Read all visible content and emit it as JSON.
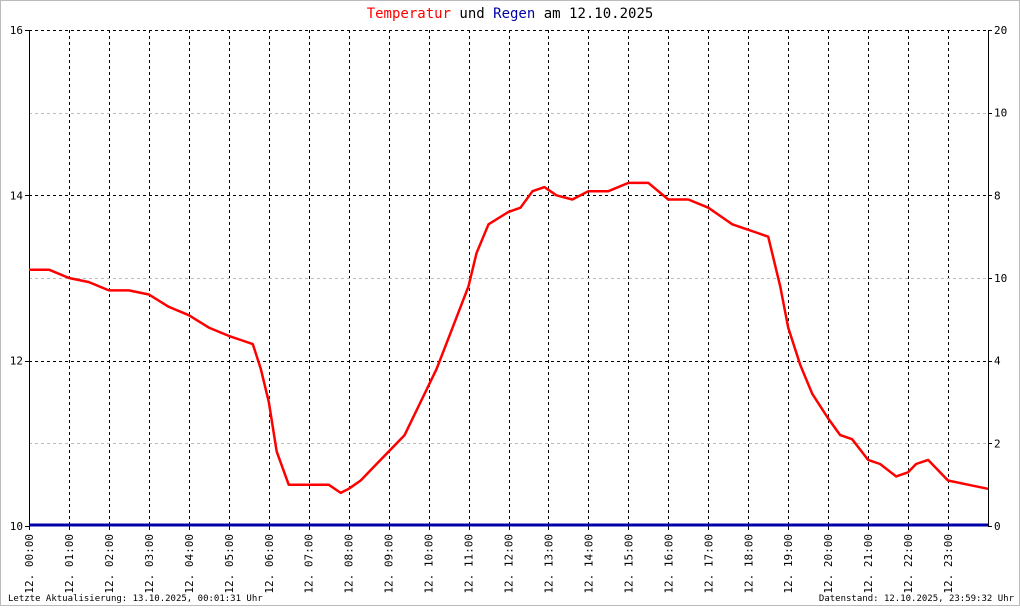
{
  "title": {
    "part1": "Temperatur",
    "part2": " und ",
    "part3": "Regen",
    "part4": " am 12.10.2025"
  },
  "colors": {
    "temperature": "#ff0000",
    "rain": "#0000aa",
    "right_axis_labels": "#00dd00",
    "grid": "#000000",
    "background": "#ffffff"
  },
  "footer": {
    "left": "Letzte Aktualisierung: 13.10.2025, 00:01:31 Uhr",
    "right": "Datenstand: 12.10.2025, 23:59:32 Uhr"
  },
  "chart_data": {
    "type": "line",
    "title": "Temperatur und Regen am 12.10.2025",
    "x_range_hours": [
      0,
      24
    ],
    "x_tick_labels": [
      "12. 00:00",
      "12. 01:00",
      "12. 02:00",
      "12. 03:00",
      "12. 04:00",
      "12. 05:00",
      "12. 06:00",
      "12. 07:00",
      "12. 08:00",
      "12. 09:00",
      "12. 10:00",
      "12. 11:00",
      "12. 12:00",
      "12. 13:00",
      "12. 14:00",
      "12. 15:00",
      "12. 16:00",
      "12. 17:00",
      "12. 18:00",
      "12. 19:00",
      "12. 20:00",
      "12. 21:00",
      "12. 22:00",
      "12. 23:00"
    ],
    "y_left": {
      "range": [
        10,
        16
      ],
      "ticks": [
        "10",
        "12",
        "14",
        "16"
      ]
    },
    "y_right": {
      "range": [
        0,
        20
      ],
      "ticks": [
        "0",
        "2",
        "4",
        "8",
        "10",
        "10",
        "20"
      ]
    },
    "grid": true,
    "series": [
      {
        "name": "Temperatur",
        "axis": "left",
        "x": [
          0,
          0.5,
          1,
          1.5,
          2,
          2.5,
          3,
          3.5,
          4,
          4.5,
          5,
          5.3,
          5.6,
          5.8,
          6,
          6.2,
          6.5,
          7,
          7.5,
          7.8,
          8,
          8.3,
          8.6,
          9,
          9.4,
          9.8,
          10.2,
          10.6,
          11,
          11.2,
          11.5,
          12,
          12.3,
          12.6,
          12.9,
          13.2,
          13.6,
          14,
          14.5,
          15,
          15.5,
          16,
          16.5,
          17,
          17.3,
          17.6,
          17.9,
          18.2,
          18.5,
          18.8,
          19,
          19.3,
          19.6,
          20,
          20.3,
          20.6,
          21,
          21.3,
          21.7,
          22,
          22.2,
          22.5,
          23,
          23.5,
          24
        ],
        "y": [
          13.1,
          13.1,
          13.0,
          12.95,
          12.85,
          12.85,
          12.8,
          12.65,
          12.55,
          12.4,
          12.3,
          12.25,
          12.2,
          11.9,
          11.5,
          10.9,
          10.5,
          10.5,
          10.5,
          10.4,
          10.45,
          10.55,
          10.7,
          10.9,
          11.1,
          11.5,
          11.9,
          12.4,
          12.9,
          13.3,
          13.65,
          13.8,
          13.85,
          14.05,
          14.1,
          14.0,
          13.95,
          14.05,
          14.05,
          14.15,
          14.15,
          13.95,
          13.95,
          13.85,
          13.75,
          13.65,
          13.6,
          13.55,
          13.5,
          12.9,
          12.4,
          11.95,
          11.6,
          11.3,
          11.1,
          11.05,
          10.8,
          10.75,
          10.6,
          10.65,
          10.75,
          10.8,
          10.55,
          10.5,
          10.45
        ]
      },
      {
        "name": "Regen",
        "axis": "right",
        "x": [
          0,
          24
        ],
        "y": [
          0,
          0
        ]
      }
    ]
  }
}
